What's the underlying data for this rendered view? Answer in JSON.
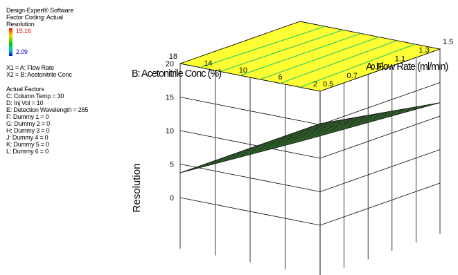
{
  "info": {
    "software": "Design-Expert® Software",
    "factor_coding": "Factor Coding: Actual",
    "response": "Resolution",
    "legend_max": "15.16",
    "legend_min": "2.09",
    "x1": "X1 = A: Flow Rate",
    "x2": "X2 = B: Acetonitrile Conc",
    "actual_factors_title": "Actual Factors",
    "factors": [
      "C: Column Temp = 30",
      "D: Inj Vol  = 10",
      "E: Detection Wavelength  = 265",
      "F: Dummy 1 = 0",
      "G: Dummy 2 = 0",
      "H: Dummy 3 = 0",
      "J: Dummy 4 = 0",
      "K: Dummy 5 = 0",
      "L: Dummy 6 = 0"
    ]
  },
  "colors": {
    "legend_high": "#e00000",
    "legend_low": "#0000e0",
    "top_face": "#ffff33",
    "surface": "#1e2a18",
    "contour": "#33cc66"
  },
  "chart_data": {
    "type": "surface",
    "title": "",
    "xlabel": "A: Flow Rate  (ml/min)",
    "ylabel": "B: Acetonitrile Conc  (%)",
    "zlabel": "Resolution",
    "x_ticks": [
      "0.5",
      "0.7",
      "0.9",
      "1.1",
      "1.3",
      "1.5"
    ],
    "y_ticks": [
      "2",
      "6",
      "10",
      "14",
      "18"
    ],
    "z_ticks": [
      "0",
      "5",
      "10",
      "15",
      "20"
    ],
    "xlim": [
      0.5,
      1.5
    ],
    "ylim": [
      2,
      18
    ],
    "zlim": [
      0,
      20
    ],
    "grid": true,
    "corners": [
      {
        "a": 0.5,
        "b": 2,
        "resolution": 15.16
      },
      {
        "a": 1.5,
        "b": 2,
        "resolution": 12.0
      },
      {
        "a": 0.5,
        "b": 18,
        "resolution": 3.7
      },
      {
        "a": 1.5,
        "b": 18,
        "resolution": 2.09
      }
    ]
  }
}
